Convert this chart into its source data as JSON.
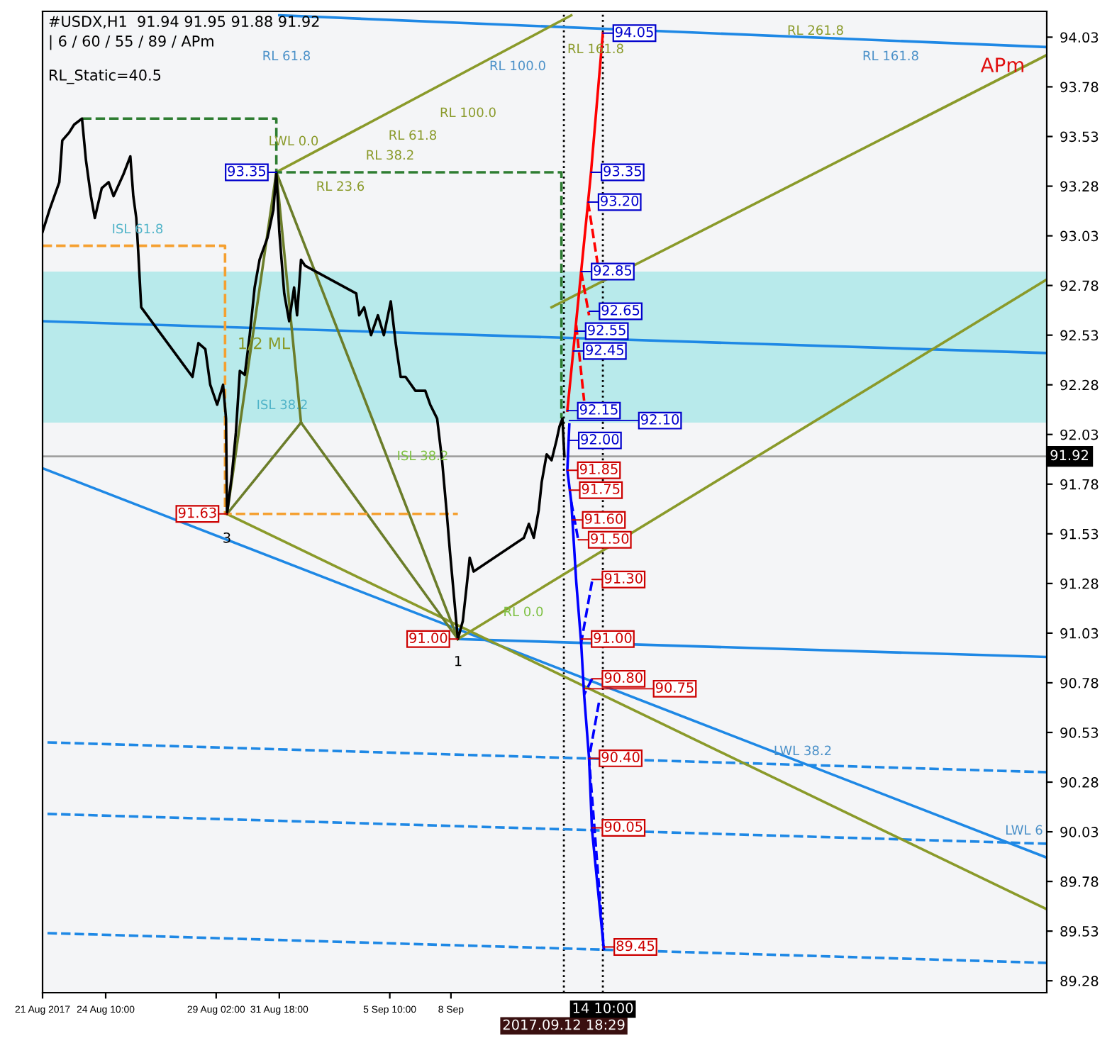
{
  "chart_data": {
    "type": "line",
    "xlim": [
      "2017-08-21T18:00",
      "2017-10-03T04:00"
    ],
    "ylim": [
      89.22,
      94.16
    ],
    "xticks": [
      {
        "value": "2017-08-21T18:00",
        "label": "21 Aug 2017"
      },
      {
        "value": "2017-08-24T10:00",
        "label": "24 Aug 10:00"
      },
      {
        "value": "2017-08-29T02:00",
        "label": "29 Aug 02:00"
      },
      {
        "value": "2017-08-31T18:00",
        "label": "31 Aug 18:00"
      },
      {
        "value": "2017-09-05T10:00",
        "label": "5 Sep 10:00"
      },
      {
        "value": "2017-09-08T00:00",
        "label": "8 Sep"
      }
    ],
    "yticks": [
      94.03,
      93.78,
      93.53,
      93.28,
      93.03,
      92.78,
      92.53,
      92.28,
      92.03,
      91.78,
      91.53,
      91.28,
      91.03,
      90.78,
      90.53,
      90.28,
      90.03,
      89.78,
      89.53,
      89.28
    ],
    "series": [
      {
        "color": "#000000",
        "x": [
          "2017-08-21T18:00",
          "2017-08-22T01:00",
          "2017-08-22T11:00",
          "2017-08-22T14:00",
          "2017-08-22T21:00",
          "2017-08-23T02:00",
          "2017-08-23T10:00",
          "2017-08-23T14:00",
          "2017-08-23T19:00",
          "2017-08-23T23:00",
          "2017-08-24T06:00",
          "2017-08-24T13:00",
          "2017-08-24T18:00",
          "2017-08-25T04:00",
          "2017-08-25T11:00",
          "2017-08-25T14:00",
          "2017-08-25T17:00",
          "2017-08-25T19:00",
          "2017-08-25T22:00",
          "2017-08-28T02:00",
          "2017-08-28T08:00",
          "2017-08-28T15:00",
          "2017-08-28T20:00",
          "2017-08-29T03:00",
          "2017-08-29T09:00",
          "2017-08-29T12:00",
          "2017-08-29T13:00",
          "2017-08-29T18:00",
          "2017-08-29T22:00",
          "2017-08-30T02:00",
          "2017-08-30T07:00",
          "2017-08-30T12:00",
          "2017-08-30T17:00",
          "2017-08-30T22:00",
          "2017-08-31T06:00",
          "2017-08-31T12:00",
          "2017-08-31T15:00",
          "2017-08-31T18:00",
          "2017-08-31T23:00",
          "2017-09-01T04:00",
          "2017-09-01T09:00",
          "2017-09-01T12:00",
          "2017-09-01T16:00",
          "2017-09-01T20:00",
          "2017-09-04T00:00",
          "2017-09-04T03:00",
          "2017-09-04T08:00",
          "2017-09-04T15:00",
          "2017-09-04T22:00",
          "2017-09-05T04:00",
          "2017-09-05T11:00",
          "2017-09-05T16:00",
          "2017-09-05T21:00",
          "2017-09-06T02:00",
          "2017-09-06T12:00",
          "2017-09-06T22:00",
          "2017-09-07T03:00",
          "2017-09-07T10:00",
          "2017-09-07T15:00",
          "2017-09-07T20:00",
          "2017-09-07T23:00",
          "2017-09-08T07:00",
          "2017-09-08T12:00",
          "2017-09-08T16:00",
          "2017-09-08T19:00",
          "2017-09-08T23:00",
          "2017-09-11T02:00",
          "2017-09-11T07:00",
          "2017-09-11T12:00",
          "2017-09-11T17:00",
          "2017-09-11T20:00",
          "2017-09-12T01:00",
          "2017-09-12T06:00",
          "2017-09-12T11:00",
          "2017-09-12T14:00",
          "2017-09-12T17:00",
          "2017-09-12T19:00"
        ],
        "values": [
          93.05,
          93.16,
          93.3,
          93.51,
          93.55,
          93.59,
          93.62,
          93.41,
          93.23,
          93.12,
          93.27,
          93.3,
          93.23,
          93.34,
          93.43,
          93.23,
          93.12,
          92.95,
          92.67,
          92.32,
          92.49,
          92.46,
          92.28,
          92.18,
          92.28,
          92.11,
          91.63,
          91.83,
          92.04,
          92.35,
          92.33,
          92.53,
          92.77,
          92.91,
          93.02,
          93.16,
          93.35,
          93.05,
          92.74,
          92.6,
          92.77,
          92.63,
          92.91,
          92.88,
          92.74,
          92.63,
          92.67,
          92.53,
          92.63,
          92.53,
          92.7,
          92.49,
          92.32,
          92.32,
          92.25,
          92.25,
          92.18,
          92.11,
          91.9,
          91.62,
          91.44,
          91.0,
          91.09,
          91.27,
          91.41,
          91.34,
          91.51,
          91.58,
          91.51,
          91.65,
          91.79,
          91.93,
          91.9,
          92.0,
          92.07,
          92.11,
          91.92
        ]
      },
      {
        "color": "#1e88e5",
        "x": [
          "2017-08-31T18:00",
          "2017-10-03T04:00"
        ],
        "values": [
          94.14,
          93.98
        ]
      },
      {
        "color": "#1e88e5",
        "x": [
          "2017-08-21T18:00",
          "2017-10-03T04:00"
        ],
        "values": [
          92.6,
          92.44
        ]
      },
      {
        "color": "#1e88e5",
        "x": [
          "2017-08-21T18:00",
          "2017-10-03T04:00"
        ],
        "values": [
          91.86,
          89.9
        ]
      },
      {
        "color": "#1e88e5",
        "x": [
          "2017-09-08T07:00",
          "2017-10-03T04:00"
        ],
        "values": [
          91.0,
          90.91
        ]
      },
      {
        "color": "#1e88e5",
        "line_style": "dashed",
        "x": [
          "2017-08-21T23:00",
          "2017-10-03T04:00"
        ],
        "values": [
          90.48,
          90.33
        ]
      },
      {
        "color": "#1e88e5",
        "line_style": "dashed",
        "x": [
          "2017-08-21T23:00",
          "2017-10-03T04:00"
        ],
        "values": [
          90.12,
          89.97
        ]
      },
      {
        "color": "#1e88e5",
        "line_style": "dashed",
        "x": [
          "2017-08-21T23:00",
          "2017-10-03T04:00"
        ],
        "values": [
          89.52,
          89.37
        ]
      },
      {
        "color": "#8a9a2a",
        "x": [
          "2017-08-29T13:00",
          "2017-10-03T04:00"
        ],
        "values": [
          91.63,
          89.64
        ]
      },
      {
        "color": "#8a9a2a",
        "x": [
          "2017-08-31T15:00",
          "2017-09-13T02:00"
        ],
        "values": [
          93.35,
          94.14
        ]
      },
      {
        "color": "#8a9a2a",
        "x": [
          "2017-09-08T07:00",
          "2017-10-03T04:00"
        ],
        "values": [
          91.0,
          92.81
        ]
      },
      {
        "color": "#8a9a2a",
        "x": [
          "2017-09-12T06:00",
          "2017-10-03T04:00"
        ],
        "values": [
          92.67,
          93.94
        ]
      },
      {
        "color": "#6b7d2a",
        "x": [
          "2017-08-29T13:00",
          "2017-08-31T15:00",
          "2017-09-01T16:00"
        ],
        "values": [
          91.63,
          93.35,
          92.09
        ]
      },
      {
        "color": "#6b7d2a",
        "x": [
          "2017-08-29T13:00",
          "2017-09-01T16:00"
        ],
        "values": [
          91.63,
          92.09
        ]
      },
      {
        "color": "#6b7d2a",
        "x": [
          "2017-09-01T16:00",
          "2017-09-08T07:00"
        ],
        "values": [
          92.09,
          91.0
        ]
      },
      {
        "color": "#6b7d2a",
        "x": [
          "2017-08-31T15:00",
          "2017-09-08T07:00"
        ],
        "values": [
          93.35,
          91.0
        ]
      },
      {
        "color": "#f5a030",
        "line_style": "dashed",
        "x": [
          "2017-08-21T18:00",
          "2017-08-29T11:00",
          "2017-08-29T11:00",
          "2017-09-08T07:00"
        ],
        "values": [
          92.98,
          92.98,
          91.63,
          91.63
        ]
      },
      {
        "color": "#2e7d32",
        "line_style": "dashed",
        "x": [
          "2017-08-23T10:00",
          "2017-08-31T15:00",
          "2017-08-31T15:00",
          "2017-09-12T16:00",
          "2017-09-12T16:00"
        ],
        "values": [
          93.62,
          93.62,
          93.35,
          93.35,
          92.11
        ]
      },
      {
        "color": "#ff0000",
        "x": [
          "2017-09-12T22:00",
          "2017-09-13T04:00",
          "2017-09-13T12:00",
          "2017-09-13T19:00",
          "2017-09-13T22:00",
          "2017-09-14T10:00"
        ],
        "values": [
          92.15,
          92.45,
          92.85,
          93.2,
          93.35,
          94.05
        ]
      },
      {
        "color": "#ff0000",
        "line_style": "dashed",
        "x": [
          "2017-09-13T19:00",
          "2017-09-14T05:00"
        ],
        "values": [
          93.2,
          92.88
        ]
      },
      {
        "color": "#ff0000",
        "line_style": "dashed",
        "x": [
          "2017-09-13T12:00",
          "2017-09-13T20:00"
        ],
        "values": [
          92.85,
          92.63
        ]
      },
      {
        "color": "#ff0000",
        "line_style": "dashed",
        "x": [
          "2017-09-13T07:00",
          "2017-09-13T15:00"
        ],
        "values": [
          92.58,
          92.2
        ]
      },
      {
        "color": "#0000ff",
        "x": [
          "2017-09-13T00:00",
          "2017-09-12T22:00",
          "2017-09-13T02:00",
          "2017-09-13T07:00",
          "2017-09-13T12:00",
          "2017-09-13T15:00",
          "2017-09-13T20:00",
          "2017-09-13T23:00",
          "2017-09-14T11:00"
        ],
        "values": [
          92.08,
          91.85,
          91.69,
          91.29,
          90.98,
          90.72,
          90.4,
          90.04,
          89.44
        ]
      },
      {
        "color": "#0000ff",
        "line_style": "dashed",
        "x": [
          "2017-09-13T02:00",
          "2017-09-13T09:00"
        ],
        "values": [
          91.69,
          91.5
        ]
      },
      {
        "color": "#0000ff",
        "line_style": "dashed",
        "x": [
          "2017-09-13T23:00",
          "2017-09-13T12:00"
        ],
        "values": [
          91.29,
          90.98
        ]
      },
      {
        "color": "#0000ff",
        "line_style": "dashed",
        "x": [
          "2017-09-13T23:00",
          "2017-09-13T15:00"
        ],
        "values": [
          90.8,
          90.72
        ]
      },
      {
        "color": "#0000ff",
        "line_style": "dashed",
        "x": [
          "2017-09-14T06:00",
          "2017-09-13T20:00",
          "2017-09-14T11:00"
        ],
        "values": [
          90.68,
          90.4,
          89.44
        ]
      }
    ],
    "ref_lines": [
      {
        "axis": "y",
        "value": 91.92,
        "label": "91.92",
        "color": "#a0a0a0",
        "line_style": "solid"
      },
      {
        "axis": "x",
        "value": "2017-09-12T18:29",
        "label": "2017.09.12 18:29",
        "color": "#000000",
        "line_style": "dotted"
      },
      {
        "axis": "x",
        "value": "2017-09-14T10:00",
        "label": "14 10:00",
        "color": "#000000",
        "line_style": "dotted"
      }
    ],
    "bands": [
      {
        "axis": "y",
        "from": 92.09,
        "to": 92.85,
        "color": "#9ee6e6"
      }
    ],
    "annotations": [
      "#USDX,H1  91.94 91.95 91.88 91.92",
      "| 6 / 60 / 55 / 89 / APm",
      "RL_Static=40.5",
      "APm",
      "RL 61.8",
      "RL 100.0",
      "RL 100.0",
      "RL 61.8",
      "RL 38.2",
      "RL 23.6",
      "LWL 0.0",
      "RL 161.8",
      "RL 261.8",
      "RL 161.8",
      "ISL 61.8",
      "1/2 ML",
      "ISL 38.2",
      "ISL 38.2",
      "RL 0.0",
      "LWL 38.2",
      "LWL 6",
      "1",
      "3",
      {
        "text": "93.35",
        "x": "2017-08-31T15:00",
        "y": 93.35
      },
      {
        "text": "91.63",
        "x": "2017-08-29T13:00",
        "y": 91.63
      },
      {
        "text": "91.00",
        "x": "2017-09-08T07:00",
        "y": 91.0
      },
      {
        "text": "94.05",
        "x": "2017-09-14T10:00",
        "y": 94.05
      },
      {
        "text": "93.35",
        "x": "2017-09-13T22:00",
        "y": 93.35
      },
      {
        "text": "93.20",
        "x": "2017-09-13T19:00",
        "y": 93.2
      },
      {
        "text": "92.85",
        "x": "2017-09-13T12:00",
        "y": 92.85
      },
      {
        "text": "92.65",
        "x": "2017-09-13T20:00",
        "y": 92.65
      },
      {
        "text": "92.55",
        "x": "2017-09-13T06:00",
        "y": 92.55
      },
      {
        "text": "92.45",
        "x": "2017-09-13T04:00",
        "y": 92.45
      },
      {
        "text": "92.15",
        "x": "2017-09-12T22:00",
        "y": 92.15
      },
      {
        "text": "92.10",
        "x": "2017-09-13T00:00",
        "y": 92.1
      },
      {
        "text": "92.00",
        "x": "2017-09-12T23:00",
        "y": 92.0
      },
      {
        "text": "91.85",
        "x": "2017-09-12T22:00",
        "y": 91.85
      },
      {
        "text": "91.75",
        "x": "2017-09-13T00:00",
        "y": 91.75
      },
      {
        "text": "91.60",
        "x": "2017-09-13T03:00",
        "y": 91.6
      },
      {
        "text": "91.50",
        "x": "2017-09-13T09:00",
        "y": 91.5
      },
      {
        "text": "91.30",
        "x": "2017-09-13T23:00",
        "y": 91.3
      },
      {
        "text": "91.00",
        "x": "2017-09-13T12:00",
        "y": 91.0
      },
      {
        "text": "90.80",
        "x": "2017-09-13T23:00",
        "y": 90.8
      },
      {
        "text": "90.75",
        "x": "2017-09-13T15:00",
        "y": 90.75
      },
      {
        "text": "90.40",
        "x": "2017-09-13T20:00",
        "y": 90.4
      },
      {
        "text": "90.05",
        "x": "2017-09-13T23:00",
        "y": 90.05
      },
      {
        "text": "89.45",
        "x": "2017-09-14T11:00",
        "y": 89.45
      }
    ]
  }
}
